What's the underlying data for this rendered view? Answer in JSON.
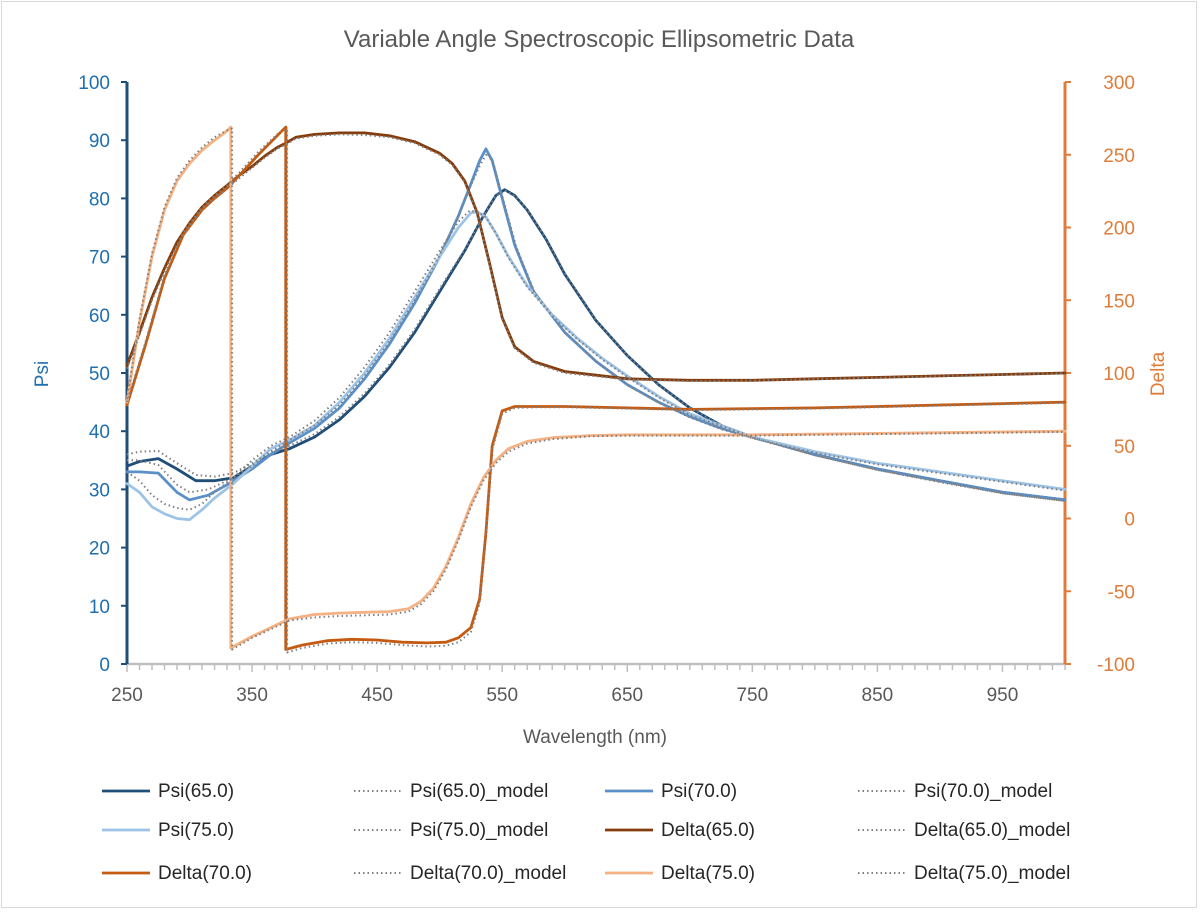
{
  "chart_data": {
    "type": "line",
    "title": "Variable Angle Spectroscopic Ellipsometric Data",
    "xlabel": "Wavelength (nm)",
    "ylabel": "Psi",
    "y2label": "Delta",
    "xlim": [
      250,
      1000
    ],
    "ylim": [
      0,
      100
    ],
    "y2lim": [
      -100,
      300
    ],
    "x_ticks": [
      "250",
      "350",
      "450",
      "550",
      "650",
      "750",
      "850",
      "950"
    ],
    "y_ticks": [
      "0",
      "10",
      "20",
      "30",
      "40",
      "50",
      "60",
      "70",
      "80",
      "90",
      "100"
    ],
    "y2_ticks": [
      "-100",
      "-50",
      "0",
      "50",
      "100",
      "150",
      "200",
      "250",
      "300"
    ],
    "grid": false,
    "legend_position": "bottom",
    "colors": {
      "psi_axis": "#1f6fb0",
      "delta_axis": "#e07b39",
      "psi65": "#1f4e79",
      "psi70": "#5b8fc7",
      "psi75": "#9dc3e6",
      "delta65": "#843c0c",
      "delta70": "#c55a11",
      "delta75": "#f4b183",
      "model": "#808080"
    },
    "series": [
      {
        "name": "Psi(65.0)",
        "axis": "left",
        "style": "solid",
        "color": "psi65",
        "x": [
          250,
          260,
          275,
          290,
          305,
          320,
          335,
          350,
          365,
          380,
          400,
          420,
          440,
          460,
          480,
          500,
          520,
          535,
          545,
          552,
          560,
          570,
          585,
          600,
          625,
          650,
          675,
          700,
          725,
          750,
          800,
          850,
          900,
          950,
          1000
        ],
        "y": [
          34,
          34.8,
          35.3,
          33.5,
          31.5,
          31.5,
          32,
          34,
          36,
          37,
          39,
          42,
          46,
          51,
          57,
          64,
          71,
          77,
          80.5,
          81.5,
          80.5,
          78,
          73,
          67,
          59,
          53,
          48,
          44,
          41,
          39,
          36,
          33.5,
          31.5,
          29.5,
          28.2
        ]
      },
      {
        "name": "Psi(65.0)_model",
        "axis": "left",
        "style": "dotted",
        "color": "model",
        "x": [
          250,
          260,
          275,
          290,
          305,
          320,
          335,
          350,
          365,
          380,
          400,
          420,
          440,
          460,
          480,
          500,
          520,
          535,
          545,
          553,
          561,
          571,
          586,
          601,
          626,
          651,
          676,
          701,
          726,
          751,
          801,
          851,
          901,
          951,
          1000
        ],
        "y": [
          36,
          36.5,
          36.6,
          34.5,
          32.5,
          32.2,
          32.8,
          34.5,
          36.5,
          37.5,
          39.5,
          42.5,
          46.5,
          51.5,
          57.5,
          64.5,
          71.2,
          77,
          80.5,
          81.3,
          80.3,
          77.8,
          72.8,
          66.8,
          58.8,
          52.8,
          47.8,
          43.9,
          40.9,
          38.9,
          35.8,
          33.3,
          31.2,
          29.3,
          28
        ]
      },
      {
        "name": "Psi(70.0)",
        "axis": "left",
        "style": "solid",
        "color": "psi70",
        "x": [
          250,
          260,
          275,
          290,
          300,
          315,
          330,
          350,
          365,
          380,
          400,
          420,
          440,
          460,
          480,
          500,
          515,
          525,
          532,
          537,
          542,
          550,
          560,
          575,
          600,
          625,
          650,
          675,
          700,
          725,
          750,
          800,
          850,
          900,
          950,
          1000
        ],
        "y": [
          33,
          33,
          32.8,
          29.5,
          28.2,
          29,
          30.8,
          33.5,
          36,
          38,
          40.5,
          44,
          49,
          55,
          62,
          70,
          77,
          82.5,
          86.5,
          88.5,
          86.5,
          80,
          72,
          64,
          57,
          52,
          48,
          45,
          42.5,
          40.5,
          39,
          36,
          33.5,
          31.5,
          29.5,
          28.2
        ]
      },
      {
        "name": "Psi(70.0)_model",
        "axis": "left",
        "style": "dotted",
        "color": "model",
        "x": [
          250,
          260,
          275,
          290,
          300,
          315,
          330,
          350,
          365,
          380,
          400,
          420,
          440,
          460,
          480,
          500,
          515,
          525,
          533,
          538,
          543,
          551,
          561,
          576,
          601,
          626,
          651,
          676,
          701,
          726,
          751,
          801,
          851,
          901,
          951,
          1000
        ],
        "y": [
          35,
          35,
          34.2,
          30.8,
          29.5,
          30,
          31.5,
          34,
          36.5,
          38.5,
          41,
          44.5,
          49.5,
          55.5,
          62.5,
          70.2,
          77,
          82.3,
          86,
          87.8,
          86,
          79.6,
          71.8,
          63.8,
          56.8,
          51.8,
          47.8,
          44.8,
          42.3,
          40.3,
          38.8,
          35.8,
          33.3,
          31.3,
          29.3,
          28
        ]
      },
      {
        "name": "Psi(75.0)",
        "axis": "left",
        "style": "solid",
        "color": "psi75",
        "x": [
          250,
          260,
          270,
          280,
          290,
          300,
          310,
          320,
          335,
          350,
          365,
          380,
          400,
          420,
          440,
          460,
          480,
          500,
          515,
          525,
          530,
          537,
          545,
          555,
          570,
          590,
          610,
          630,
          650,
          675,
          700,
          725,
          750,
          800,
          850,
          900,
          950,
          1000
        ],
        "y": [
          31,
          29.5,
          27,
          25.8,
          25,
          24.8,
          26.5,
          28.5,
          31,
          34,
          37,
          38.5,
          41,
          45,
          50,
          56,
          63,
          70,
          75,
          77.5,
          77.7,
          76.8,
          74,
          70,
          65,
          60,
          56,
          52.5,
          49.5,
          46,
          43,
          41,
          39,
          36.5,
          34.5,
          33,
          31.5,
          30
        ]
      },
      {
        "name": "Psi(75.0)_model",
        "axis": "left",
        "style": "dotted",
        "color": "model",
        "x": [
          250,
          260,
          270,
          280,
          290,
          300,
          310,
          320,
          335,
          350,
          365,
          380,
          400,
          420,
          440,
          460,
          480,
          500,
          515,
          524,
          530,
          537,
          545,
          555,
          570,
          590,
          610,
          630,
          650,
          675,
          700,
          725,
          750,
          800,
          850,
          900,
          950,
          1000
        ],
        "y": [
          33,
          31.5,
          29,
          27.5,
          26.8,
          26.5,
          27.5,
          29.5,
          32,
          35,
          37.5,
          39,
          41.8,
          45.8,
          51,
          57,
          64,
          71,
          76,
          77.9,
          77.7,
          76.8,
          74,
          69.8,
          64.8,
          59.8,
          55.8,
          52.3,
          49.3,
          45.8,
          42.8,
          40.8,
          38.8,
          36.3,
          34.3,
          32.8,
          31.3,
          29.8
        ]
      },
      {
        "name": "Delta(65.0)",
        "axis": "right",
        "style": "solid",
        "color": "delta65",
        "x": [
          250,
          260,
          270,
          280,
          290,
          300,
          310,
          320,
          330,
          340,
          350,
          360,
          370,
          377,
          385,
          400,
          420,
          440,
          460,
          480,
          500,
          510,
          520,
          530,
          540,
          550,
          560,
          575,
          600,
          650,
          700,
          750,
          800,
          850,
          900,
          950,
          1000
        ],
        "y": [
          105,
          128,
          152,
          172,
          190,
          203,
          214,
          222,
          229,
          236,
          242,
          249,
          255,
          258,
          262,
          264,
          265,
          265,
          263,
          259,
          251,
          244,
          232,
          210,
          175,
          138,
          118,
          108,
          101,
          96,
          95,
          95,
          96,
          97,
          98,
          99,
          100
        ],
        "extra_connector": [
          [
            377,
            269
          ],
          [
            377,
            -90
          ]
        ]
      },
      {
        "name": "Delta(65.0)_model",
        "axis": "right",
        "style": "dotted",
        "color": "model",
        "x": [
          250,
          260,
          270,
          280,
          290,
          300,
          310,
          320,
          330,
          340,
          350,
          360,
          370,
          377,
          385,
          400,
          420,
          440,
          460,
          480,
          500,
          510,
          520,
          530,
          540,
          550,
          560,
          575,
          600,
          650,
          700,
          750,
          800,
          850,
          900,
          950,
          1000
        ],
        "y": [
          103,
          126,
          150,
          170,
          188,
          201,
          212,
          220,
          227,
          234,
          241,
          248,
          254,
          257,
          261,
          263,
          264,
          263.5,
          262,
          258,
          250,
          243,
          231,
          209,
          174,
          137,
          117,
          107,
          100,
          95.5,
          94.5,
          94.8,
          95.8,
          96.8,
          97.8,
          98.8,
          99.8
        ]
      },
      {
        "name": "Delta(70.0)",
        "axis": "right",
        "style": "solid",
        "color": "delta70",
        "x": [
          250,
          265,
          280,
          295,
          310,
          320,
          330,
          340,
          355,
          370,
          377,
          377,
          390,
          410,
          430,
          450,
          470,
          490,
          505,
          515,
          525,
          532,
          537,
          542,
          550,
          560,
          580,
          600,
          650,
          700,
          750,
          800,
          850,
          900,
          950,
          1000
        ],
        "y": [
          78,
          120,
          165,
          195,
          212,
          220,
          227,
          236,
          250,
          263,
          269,
          -90,
          -87,
          -84,
          -83,
          -83.5,
          -85,
          -85.5,
          -85,
          -82,
          -75,
          -55,
          -10,
          50,
          74,
          77,
          77,
          77,
          76,
          75,
          75.5,
          76,
          77,
          78,
          79,
          80
        ]
      },
      {
        "name": "Delta(70.0)_model",
        "axis": "right",
        "style": "dotted",
        "color": "model",
        "x": [
          250,
          265,
          280,
          295,
          310,
          320,
          330,
          340,
          355,
          370,
          378,
          378,
          390,
          410,
          430,
          450,
          470,
          490,
          505,
          515,
          525,
          532,
          537,
          542,
          550,
          560,
          580,
          600,
          650,
          700,
          750,
          800,
          850,
          900,
          950,
          1000
        ],
        "y": [
          80,
          122,
          167,
          197,
          214,
          222,
          229,
          238,
          252,
          264,
          268,
          -92,
          -89,
          -86,
          -85,
          -85.5,
          -87,
          -88,
          -87.5,
          -85,
          -78,
          -58,
          -13,
          47,
          72,
          76,
          76.5,
          76.5,
          75.5,
          74.5,
          75,
          75.5,
          76.5,
          77.5,
          78.5,
          79.5
        ]
      },
      {
        "name": "Delta(75.0)",
        "axis": "right",
        "style": "solid",
        "color": "delta75",
        "x": [
          250,
          260,
          270,
          280,
          290,
          300,
          310,
          320,
          328,
          333,
          333,
          350,
          370,
          380,
          400,
          420,
          440,
          460,
          475,
          485,
          495,
          505,
          515,
          525,
          535,
          545,
          555,
          570,
          590,
          620,
          650,
          700,
          750,
          800,
          850,
          900,
          950,
          1000
        ],
        "y": [
          80,
          135,
          180,
          212,
          232,
          244,
          253,
          260,
          265,
          269,
          -89,
          -81,
          -73,
          -69,
          -66,
          -65,
          -64.5,
          -64,
          -62,
          -57,
          -48,
          -33,
          -13,
          10,
          28,
          40,
          48,
          53,
          55.5,
          57,
          57.5,
          57.5,
          57.5,
          58,
          58.5,
          59,
          59.5,
          60
        ]
      },
      {
        "name": "Delta(75.0)_model",
        "axis": "right",
        "style": "dotted",
        "color": "model",
        "x": [
          250,
          260,
          270,
          280,
          290,
          300,
          310,
          320,
          328,
          334,
          334,
          350,
          370,
          380,
          400,
          420,
          440,
          460,
          475,
          485,
          495,
          505,
          515,
          525,
          535,
          545,
          555,
          570,
          590,
          620,
          650,
          700,
          750,
          800,
          850,
          900,
          950,
          1000
        ],
        "y": [
          82,
          137,
          182,
          214,
          234,
          246,
          255,
          262,
          266,
          268,
          -90,
          -82,
          -74,
          -70,
          -68,
          -67,
          -66.5,
          -66,
          -64,
          -59,
          -50,
          -35,
          -15,
          8,
          26,
          38,
          46,
          51.5,
          54.5,
          56.5,
          57,
          57,
          57,
          57.5,
          58,
          58.5,
          59,
          59.5
        ]
      }
    ],
    "legend": [
      "Psi(65.0)",
      "Psi(65.0)_model",
      "Psi(70.0)",
      "Psi(70.0)_model",
      "Psi(75.0)",
      "Psi(75.0)_model",
      "Delta(65.0)",
      "Delta(65.0)_model",
      "Delta(70.0)",
      "Delta(70.0)_model",
      "Delta(75.0)",
      "Delta(75.0)_model"
    ]
  }
}
